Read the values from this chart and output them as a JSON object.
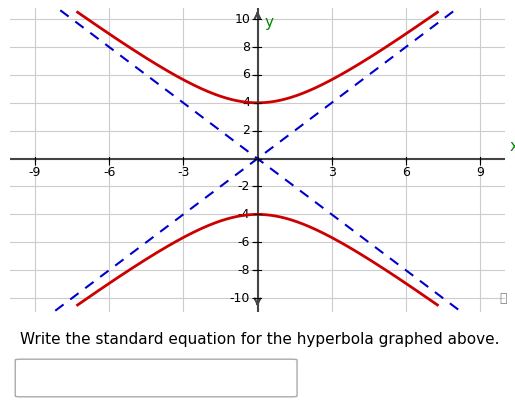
{
  "title": "",
  "xlabel": "x",
  "ylabel": "y",
  "xlim": [
    -10,
    10
  ],
  "ylim": [
    -10.5,
    10.5
  ],
  "x_ticks": [
    -9,
    -6,
    -3,
    3,
    6,
    9
  ],
  "y_ticks": [
    -10,
    -8,
    -6,
    -4,
    -2,
    2,
    4,
    6,
    8,
    10
  ],
  "a": 4,
  "b": 3,
  "hyperbola_color": "#cc0000",
  "asymptote_color": "#0000cc",
  "axis_color": "#444444",
  "grid_color": "#cccccc",
  "xlabel_color": "#008800",
  "ylabel_color": "#008800",
  "background_color": "#ffffff",
  "text_label": "Write the standard equation for the hyperbola graphed above.",
  "text_fontsize": 11,
  "tick_label_fontsize": 9,
  "axis_label_fontsize": 11
}
